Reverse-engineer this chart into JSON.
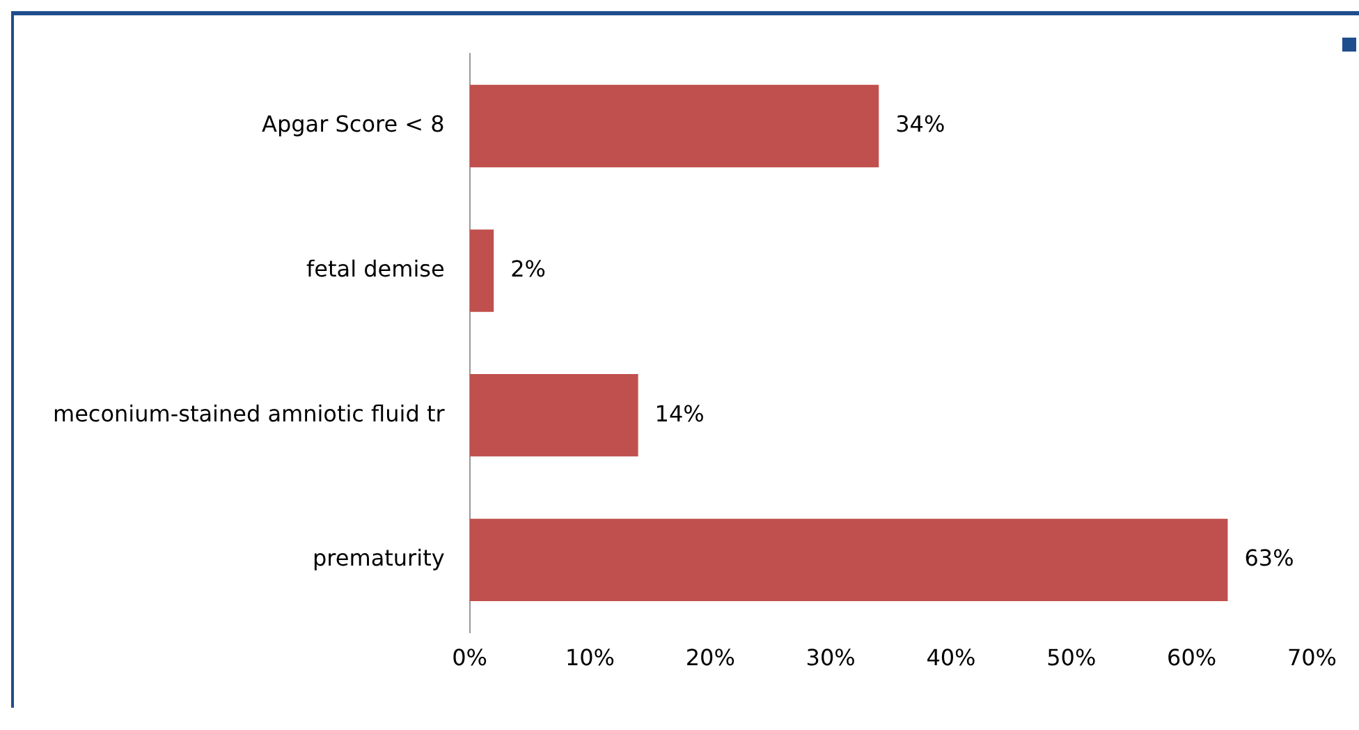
{
  "chart_data": {
    "type": "bar",
    "orientation": "horizontal",
    "categories": [
      "Apgar Score < 8",
      "fetal demise",
      "meconium-stained amniotic fluid tr",
      "prematurity"
    ],
    "values": [
      34,
      2,
      14,
      63
    ],
    "color": "#c0504d",
    "value_labels": [
      "34%",
      "2%",
      "14%",
      "63%"
    ],
    "xlim": [
      0,
      70
    ],
    "xticks": [
      {
        "value": 0,
        "label": "0%"
      },
      {
        "value": 10,
        "label": "10%"
      },
      {
        "value": 20,
        "label": "20%"
      },
      {
        "value": 30,
        "label": "30%"
      },
      {
        "value": 40,
        "label": "40%"
      },
      {
        "value": 50,
        "label": "50%"
      },
      {
        "value": 60,
        "label": "60%"
      },
      {
        "value": 70,
        "label": "70%"
      }
    ],
    "grid": false,
    "legend": false
  }
}
